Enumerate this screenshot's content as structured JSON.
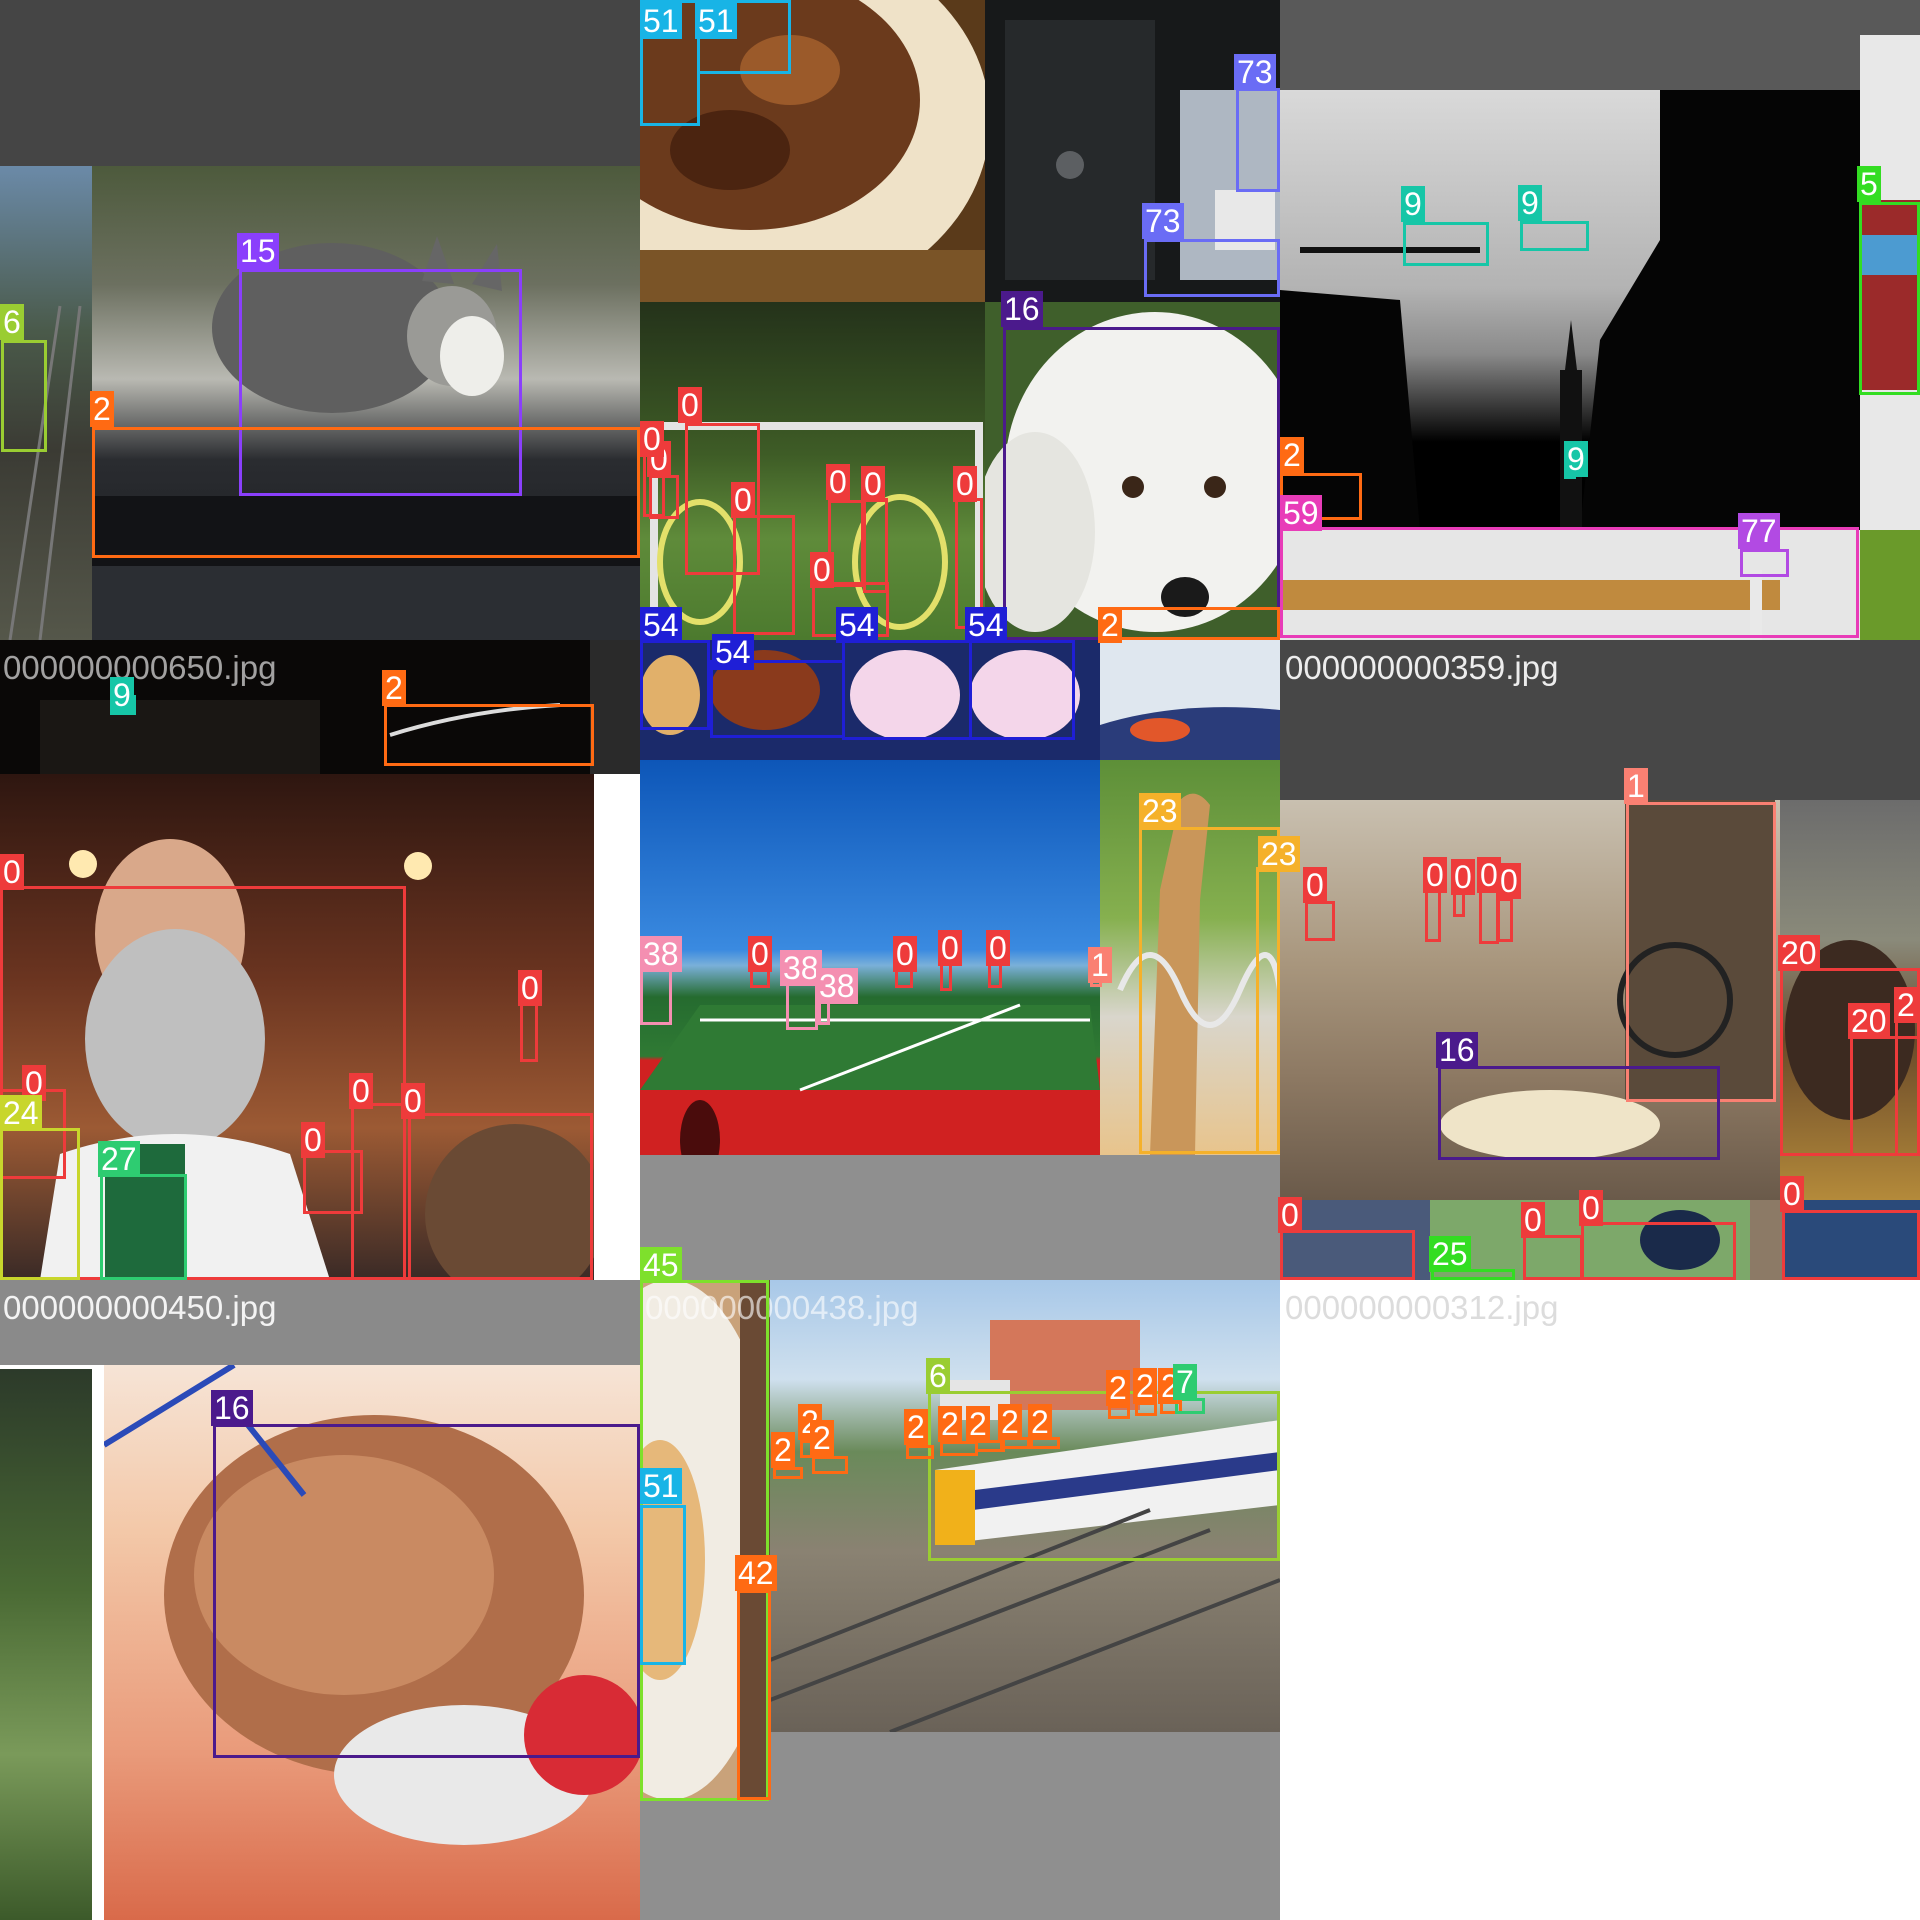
{
  "mosaic": {
    "background": "#ffffff",
    "filenames": [
      "000000000650.jpg",
      "000000000359.jpg",
      "000000000450.jpg",
      "000000000438.jpg",
      "000000000312.jpg"
    ]
  },
  "detections": [
    {
      "id": "6",
      "color": "#9acd32"
    },
    {
      "id": "15",
      "color": "#8a3ffc"
    },
    {
      "id": "2",
      "color": "#ff6a13"
    },
    {
      "id": "51",
      "color": "#18b4e6"
    },
    {
      "id": "51",
      "color": "#18b4e6"
    },
    {
      "id": "73",
      "color": "#6a6cf5"
    },
    {
      "id": "73",
      "color": "#6a6cf5"
    },
    {
      "id": "9",
      "color": "#16c6a7"
    },
    {
      "id": "9",
      "color": "#16c6a7"
    },
    {
      "id": "9",
      "color": "#16c6a7"
    },
    {
      "id": "5",
      "color": "#33dd22"
    },
    {
      "id": "2",
      "color": "#ff6a13"
    },
    {
      "id": "59",
      "color": "#e83cb8"
    },
    {
      "id": "77",
      "color": "#b24ae3"
    },
    {
      "id": "16",
      "color": "#4b1a8c"
    },
    {
      "id": "0",
      "color": "#ee3b3b"
    },
    {
      "id": "0",
      "color": "#ee3b3b"
    },
    {
      "id": "0",
      "color": "#ee3b3b"
    },
    {
      "id": "0",
      "color": "#ee3b3b"
    },
    {
      "id": "0",
      "color": "#ee3b3b"
    },
    {
      "id": "0",
      "color": "#ee3b3b"
    },
    {
      "id": "0",
      "color": "#ee3b3b"
    },
    {
      "id": "0",
      "color": "#ee3b3b"
    },
    {
      "id": "2",
      "color": "#ff6a13"
    },
    {
      "id": "54",
      "color": "#1f1fd6"
    },
    {
      "id": "54",
      "color": "#1f1fd6"
    },
    {
      "id": "54",
      "color": "#1f1fd6"
    },
    {
      "id": "54",
      "color": "#1f1fd6"
    },
    {
      "id": "9",
      "color": "#16c6a7"
    },
    {
      "id": "2",
      "color": "#ff6a13"
    },
    {
      "id": "0",
      "color": "#ee3b3b"
    },
    {
      "id": "0",
      "color": "#ee3b3b"
    },
    {
      "id": "0",
      "color": "#ee3b3b"
    },
    {
      "id": "0",
      "color": "#ee3b3b"
    },
    {
      "id": "0",
      "color": "#ee3b3b"
    },
    {
      "id": "0",
      "color": "#ee3b3b"
    },
    {
      "id": "24",
      "color": "#c8d62c"
    },
    {
      "id": "27",
      "color": "#2ecc71"
    },
    {
      "id": "38",
      "color": "#f48fb1"
    },
    {
      "id": "0",
      "color": "#ee3b3b"
    },
    {
      "id": "38",
      "color": "#f48fb1"
    },
    {
      "id": "38",
      "color": "#f48fb1"
    },
    {
      "id": "0",
      "color": "#ee3b3b"
    },
    {
      "id": "0",
      "color": "#ee3b3b"
    },
    {
      "id": "0",
      "color": "#ee3b3b"
    },
    {
      "id": "1",
      "color": "#fa8072"
    },
    {
      "id": "23",
      "color": "#f5b12a"
    },
    {
      "id": "23",
      "color": "#f5b12a"
    },
    {
      "id": "1",
      "color": "#fa8072"
    },
    {
      "id": "0",
      "color": "#ee3b3b"
    },
    {
      "id": "0",
      "color": "#ee3b3b"
    },
    {
      "id": "0",
      "color": "#ee3b3b"
    },
    {
      "id": "0",
      "color": "#ee3b3b"
    },
    {
      "id": "0",
      "color": "#ee3b3b"
    },
    {
      "id": "20",
      "color": "#ee3b3b"
    },
    {
      "id": "20",
      "color": "#ee3b3b"
    },
    {
      "id": "2",
      "color": "#ee3b3b"
    },
    {
      "id": "16",
      "color": "#4b1a8c"
    },
    {
      "id": "0",
      "color": "#ee3b3b"
    },
    {
      "id": "25",
      "color": "#33dd22"
    },
    {
      "id": "0",
      "color": "#ee3b3b"
    },
    {
      "id": "0",
      "color": "#ee3b3b"
    },
    {
      "id": "0",
      "color": "#ee3b3b"
    },
    {
      "id": "16",
      "color": "#4b1a8c"
    },
    {
      "id": "45",
      "color": "#7ee02c"
    },
    {
      "id": "51",
      "color": "#18b4e6"
    },
    {
      "id": "42",
      "color": "#ff6a13"
    },
    {
      "id": "6",
      "color": "#9acd32"
    },
    {
      "id": "2",
      "color": "#ff6a13"
    },
    {
      "id": "2",
      "color": "#ff6a13"
    },
    {
      "id": "2",
      "color": "#ff6a13"
    },
    {
      "id": "2",
      "color": "#ff6a13"
    },
    {
      "id": "2",
      "color": "#ff6a13"
    },
    {
      "id": "2",
      "color": "#ff6a13"
    },
    {
      "id": "2",
      "color": "#ff6a13"
    },
    {
      "id": "2",
      "color": "#ff6a13"
    },
    {
      "id": "2",
      "color": "#ff6a13"
    },
    {
      "id": "2",
      "color": "#ff6a13"
    },
    {
      "id": "2",
      "color": "#ff6a13"
    },
    {
      "id": "7",
      "color": "#2ecc71"
    }
  ]
}
